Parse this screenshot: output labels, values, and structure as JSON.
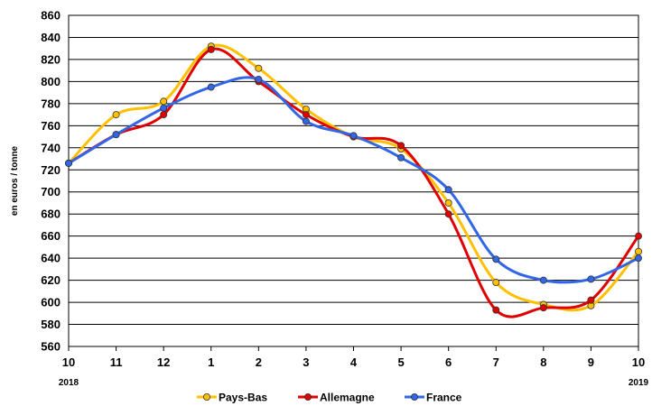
{
  "chart_data": {
    "type": "line",
    "x_ticks": [
      "10",
      "11",
      "12",
      "1",
      "2",
      "3",
      "4",
      "5",
      "6",
      "7",
      "8",
      "9",
      "10"
    ],
    "x_year_labels": [
      {
        "text": "2018",
        "index": 0
      },
      {
        "text": "2019",
        "index": 12
      }
    ],
    "ylabel": "en euros / tonne",
    "ylim": [
      560,
      860
    ],
    "ytick_step": 20,
    "grid": true,
    "legend_position": "bottom",
    "series": [
      {
        "name": "Pays-Bas",
        "color": "#FFC000",
        "values": [
          726,
          770,
          782,
          832,
          812,
          775,
          750,
          739,
          690,
          618,
          598,
          597,
          646
        ]
      },
      {
        "name": "Allemagne",
        "color": "#E00000",
        "values": [
          726,
          752,
          770,
          829,
          800,
          770,
          750,
          742,
          680,
          593,
          595,
          602,
          660
        ]
      },
      {
        "name": "France",
        "color": "#3366E6",
        "values": [
          726,
          752,
          776,
          795,
          802,
          764,
          751,
          731,
          702,
          639,
          620,
          621,
          640
        ]
      }
    ]
  }
}
